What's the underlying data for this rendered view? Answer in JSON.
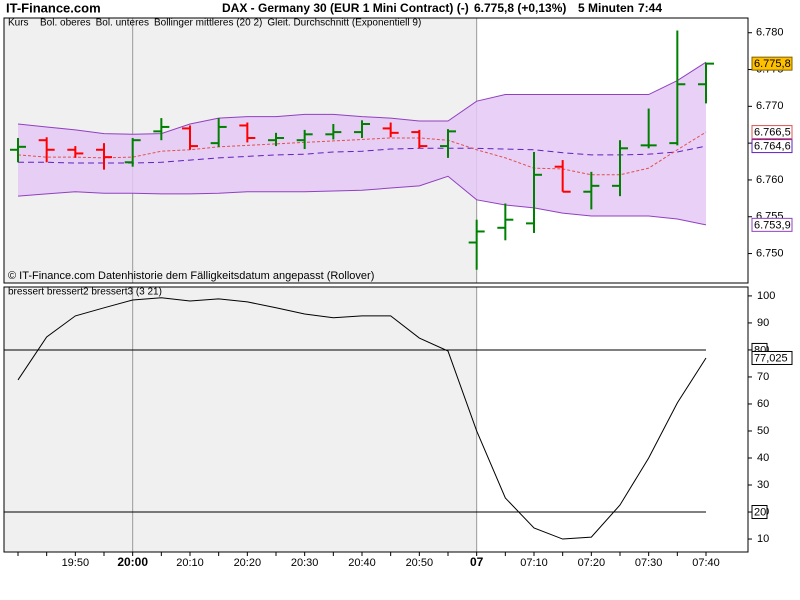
{
  "chart_data": [
    {
      "type": "ohlc",
      "site": "IT-Finance.com",
      "title": "DAX - Germany 30 (EUR 1 Mini Contract) (-)",
      "quote": "6.775,8 (+0,13%)",
      "interval": "5 Minuten",
      "time": "7:44",
      "name": "Kurs",
      "annotation": "© IT-Finance.com  Datenhistorie dem Fälligkeitsdatum angepasst (Rollover)",
      "up_color": "#008000",
      "down_color": "#ff0000",
      "open": [
        6764.1,
        6765.4,
        6764.1,
        6764.1,
        6762.4,
        6766.6,
        6767.0,
        6765.0,
        6767.4,
        6765.4,
        6765.4,
        6766.2,
        6766.5,
        6767.0,
        6766.5,
        6764.6,
        6751.5,
        6753.5,
        6754.1,
        6761.8,
        6758.4,
        6759.2,
        6764.7,
        6765.0,
        6773.0
      ],
      "high": [
        6765.7,
        6765.8,
        6764.6,
        6765.0,
        6765.7,
        6768.4,
        6767.4,
        6768.4,
        6767.8,
        6766.4,
        6766.8,
        6767.6,
        6768.1,
        6767.8,
        6766.8,
        6766.9,
        6754.6,
        6756.8,
        6763.8,
        6762.7,
        6761.1,
        6765.4,
        6769.7,
        6780.3,
        6775.9
      ],
      "low": [
        6762.4,
        6762.4,
        6763.0,
        6761.4,
        6761.8,
        6765.4,
        6764.1,
        6764.5,
        6765.1,
        6764.6,
        6764.2,
        6765.5,
        6765.7,
        6765.8,
        6764.3,
        6763.0,
        6747.8,
        6751.8,
        6752.8,
        6758.4,
        6756.0,
        6757.8,
        6764.3,
        6764.7,
        6770.4
      ],
      "close": [
        6764.5,
        6764.1,
        6763.6,
        6763.1,
        6765.4,
        6767.2,
        6764.6,
        6767.2,
        6765.7,
        6765.7,
        6766.2,
        6766.5,
        6767.6,
        6766.4,
        6764.6,
        6766.6,
        6753.0,
        6754.6,
        6760.7,
        6758.4,
        6759.2,
        6764.3,
        6764.7,
        6773.0,
        6775.8
      ],
      "close_labels": [
        null,
        null,
        null,
        null,
        null,
        null,
        null,
        null,
        null,
        null,
        null,
        null,
        null,
        null,
        null,
        null,
        null,
        null,
        null,
        null,
        null,
        null,
        null,
        null,
        "6.775,8"
      ],
      "close_label_color": "#ffc000",
      "band_fill": "#e4c8f4",
      "series": [
        {
          "name": "Bol. oberes",
          "color": "#9040c0",
          "dash": false,
          "values": [
            6767.6,
            6767.2,
            6766.8,
            6766.3,
            6766.2,
            6766.3,
            6767.6,
            6768.4,
            6768.6,
            6768.6,
            6768.9,
            6768.9,
            6768.6,
            6768.4,
            6768.0,
            6768.0,
            6770.7,
            6771.6,
            6771.6,
            6771.6,
            6771.6,
            6771.6,
            6771.6,
            6773.5,
            6776.0
          ]
        },
        {
          "name": "Bol. unteres",
          "color": "#9040c0",
          "dash": false,
          "values": [
            6757.8,
            6758.1,
            6758.4,
            6758.2,
            6758.2,
            6758.1,
            6758.1,
            6758.2,
            6758.4,
            6758.4,
            6758.4,
            6758.5,
            6758.6,
            6758.9,
            6759.2,
            6760.5,
            6757.3,
            6756.6,
            6756.2,
            6755.5,
            6755.1,
            6755.1,
            6755.1,
            6754.7,
            6753.9
          ],
          "value_labels": [
            null,
            null,
            null,
            null,
            null,
            null,
            null,
            null,
            null,
            null,
            null,
            null,
            null,
            null,
            null,
            null,
            null,
            null,
            null,
            null,
            null,
            null,
            null,
            null,
            "6.753,9"
          ]
        },
        {
          "name": "Bollinger mittleres (20 2)",
          "color": "#6020c0",
          "dash": true,
          "values": [
            6762.4,
            6762.4,
            6762.3,
            6762.3,
            6762.3,
            6762.4,
            6762.7,
            6763.0,
            6763.2,
            6763.4,
            6763.5,
            6763.8,
            6763.9,
            6764.2,
            6764.3,
            6764.3,
            6764.3,
            6764.2,
            6764.1,
            6763.7,
            6763.4,
            6763.4,
            6763.5,
            6763.8,
            6764.6
          ],
          "value_labels": [
            null,
            null,
            null,
            null,
            null,
            null,
            null,
            null,
            null,
            null,
            null,
            null,
            null,
            null,
            null,
            null,
            null,
            null,
            null,
            null,
            null,
            null,
            null,
            null,
            "6.764,6"
          ]
        },
        {
          "name": "Gleit. Durchschnitt (Exponentiell 9)",
          "color": "#e05050",
          "dash": true,
          "values": [
            6763.4,
            6763.1,
            6763.1,
            6763.0,
            6763.1,
            6763.9,
            6764.1,
            6764.5,
            6764.7,
            6764.9,
            6765.1,
            6765.3,
            6765.5,
            6765.7,
            6765.7,
            6765.4,
            6764.1,
            6763.0,
            6761.6,
            6761.5,
            6760.7,
            6760.7,
            6761.6,
            6764.1,
            6766.5
          ],
          "value_labels": [
            null,
            null,
            null,
            null,
            null,
            null,
            null,
            null,
            null,
            null,
            null,
            null,
            null,
            null,
            null,
            null,
            null,
            null,
            null,
            null,
            null,
            null,
            null,
            null,
            "6.766,5"
          ]
        }
      ],
      "ylim": [
        6746,
        6782
      ],
      "yticks": [
        {
          "value": 6780,
          "label": "6.780"
        },
        {
          "value": 6775,
          "label": "6.775"
        },
        {
          "value": 6770,
          "label": "6.770"
        },
        {
          "value": 6765,
          "label": "6.765"
        },
        {
          "value": 6760,
          "label": "6.760"
        },
        {
          "value": 6755,
          "label": "6.755"
        },
        {
          "value": 6750,
          "label": "6.750"
        }
      ]
    },
    {
      "type": "line",
      "categories": [
        null,
        null,
        "19:50",
        null,
        "20:00",
        null,
        "20:10",
        null,
        "20:20",
        null,
        "20:30",
        null,
        "20:40",
        null,
        "20:50",
        null,
        "07",
        null,
        "07:10",
        null,
        "07:20",
        null,
        "07:30",
        null,
        "07:40"
      ],
      "series": [
        {
          "name": "bressert bressert2 bressert3 (3 21)",
          "color": "#000000",
          "values": [
            68.9,
            84.8,
            92.6,
            95.6,
            98.5,
            99.3,
            98.1,
            98.9,
            97.8,
            95.6,
            93.3,
            91.9,
            92.6,
            92.6,
            84.4,
            79.6,
            50.0,
            25.2,
            14.1,
            10.0,
            10.7,
            22.6,
            40.0,
            60.4,
            77.025
          ],
          "value_labels": [
            null,
            null,
            null,
            null,
            null,
            null,
            null,
            null,
            null,
            null,
            null,
            null,
            null,
            null,
            null,
            null,
            null,
            null,
            null,
            null,
            null,
            null,
            null,
            null,
            "77,025"
          ]
        }
      ],
      "levels": [
        80,
        20
      ],
      "ylim": [
        5.2,
        103.3
      ],
      "yticks": [
        100,
        90,
        80,
        70,
        60,
        50,
        40,
        30,
        20,
        10
      ]
    }
  ]
}
